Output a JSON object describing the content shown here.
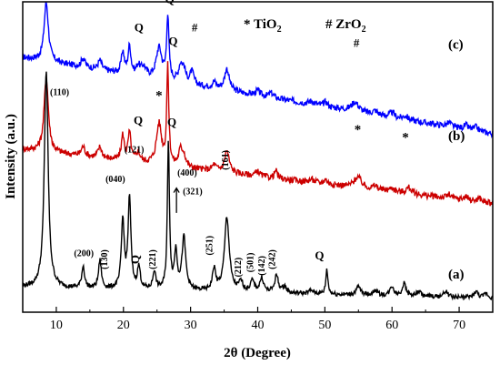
{
  "chart_data": {
    "type": "line",
    "xlabel": "2θ (Degree)",
    "ylabel": "Intensity (a.u.)",
    "xlim": [
      5,
      75
    ],
    "x_ticks": [
      10,
      20,
      30,
      40,
      50,
      60,
      70
    ],
    "y_ticks_shown": false,
    "grid": false,
    "legend": {
      "placement": "top-right",
      "items": [
        {
          "symbol": "*",
          "phase": "TiO",
          "subscript": "2"
        },
        {
          "symbol": "#",
          "phase": "ZrO",
          "subscript": "2"
        }
      ]
    },
    "series": [
      {
        "name": "(c)",
        "color": "#0000ff",
        "baseline": 0.82,
        "noise": 0.01,
        "slope": -0.00035,
        "peaks": [
          [
            8.5,
            0.19,
            0.45
          ],
          [
            14.0,
            0.03,
            0.4
          ],
          [
            16.5,
            0.03,
            0.4
          ],
          [
            19.9,
            0.07,
            0.3
          ],
          [
            20.9,
            0.09,
            0.3
          ],
          [
            22.2,
            0.03,
            0.4
          ],
          [
            23.0,
            0.03,
            0.5
          ],
          [
            25.3,
            0.1,
            0.6
          ],
          [
            26.6,
            0.2,
            0.25
          ],
          [
            28.5,
            0.05,
            0.4
          ],
          [
            29.0,
            0.04,
            0.4
          ],
          [
            30.2,
            0.04,
            0.4
          ],
          [
            33.5,
            0.02,
            0.4
          ],
          [
            35.4,
            0.07,
            0.5
          ],
          [
            40.0,
            0.015,
            0.5
          ],
          [
            42.0,
            0.015,
            0.5
          ],
          [
            48.0,
            0.01,
            0.6
          ],
          [
            50.1,
            0.015,
            0.4
          ],
          [
            54.5,
            0.03,
            0.8
          ],
          [
            57.5,
            0.012,
            0.5
          ],
          [
            60.0,
            0.015,
            0.5
          ],
          [
            62.0,
            0.012,
            0.5
          ],
          [
            68.5,
            0.012,
            0.5
          ],
          [
            71.0,
            0.012,
            0.5
          ],
          [
            72.5,
            0.012,
            0.5
          ]
        ],
        "annotations": [
          {
            "text": "Q",
            "x": 26.9,
            "y": 0.995
          },
          {
            "text": "Q",
            "x": 22.3,
            "y": 0.905
          },
          {
            "text": "#",
            "x": 30.6,
            "y": 0.905
          },
          {
            "text": "#",
            "x": 54.7,
            "y": 0.855
          }
        ],
        "label": "(c)"
      },
      {
        "name": "(b)",
        "color": "#cc0000",
        "baseline": 0.525,
        "noise": 0.01,
        "slope": -0.00025,
        "peaks": [
          [
            8.5,
            0.24,
            0.45
          ],
          [
            14.0,
            0.03,
            0.4
          ],
          [
            16.5,
            0.035,
            0.4
          ],
          [
            19.9,
            0.08,
            0.3
          ],
          [
            20.9,
            0.09,
            0.3
          ],
          [
            22.2,
            0.03,
            0.4
          ],
          [
            25.3,
            0.13,
            0.55
          ],
          [
            26.6,
            0.31,
            0.22
          ],
          [
            28.5,
            0.05,
            0.4
          ],
          [
            29.0,
            0.035,
            0.4
          ],
          [
            33.5,
            0.02,
            0.4
          ],
          [
            35.4,
            0.07,
            0.5
          ],
          [
            40.0,
            0.015,
            0.5
          ],
          [
            42.7,
            0.025,
            0.3
          ],
          [
            48.0,
            0.01,
            0.6
          ],
          [
            50.1,
            0.015,
            0.4
          ],
          [
            54.9,
            0.035,
            0.8
          ],
          [
            57.5,
            0.012,
            0.5
          ],
          [
            60.0,
            0.012,
            0.5
          ],
          [
            62.5,
            0.02,
            0.6
          ],
          [
            68.5,
            0.012,
            0.5
          ],
          [
            71.0,
            0.012,
            0.5
          ],
          [
            73.0,
            0.012,
            0.5
          ]
        ],
        "annotations": [
          {
            "text": "*",
            "x": 25.3,
            "y": 0.685
          },
          {
            "text": "Q",
            "x": 22.2,
            "y": 0.605
          },
          {
            "text": "Q",
            "x": 27.4,
            "y": 0.86
          },
          {
            "text": "*",
            "x": 54.9,
            "y": 0.575
          },
          {
            "text": "*",
            "x": 62.0,
            "y": 0.55
          }
        ],
        "label": "(b)"
      },
      {
        "name": "(a)",
        "color": "#000000",
        "baseline": 0.08,
        "noise": 0.007,
        "slope": -5e-05,
        "peaks": [
          [
            8.5,
            0.7,
            0.4
          ],
          [
            14.0,
            0.07,
            0.3
          ],
          [
            16.5,
            0.09,
            0.3
          ],
          [
            19.9,
            0.22,
            0.3
          ],
          [
            20.9,
            0.29,
            0.3
          ],
          [
            22.3,
            0.07,
            0.3
          ],
          [
            24.6,
            0.06,
            0.3
          ],
          [
            26.7,
            0.47,
            0.22
          ],
          [
            27.8,
            0.12,
            0.3
          ],
          [
            29.0,
            0.17,
            0.4
          ],
          [
            33.5,
            0.07,
            0.35
          ],
          [
            35.4,
            0.24,
            0.5
          ],
          [
            37.5,
            0.03,
            0.4
          ],
          [
            39.2,
            0.035,
            0.4
          ],
          [
            40.6,
            0.045,
            0.4
          ],
          [
            42.8,
            0.055,
            0.4
          ],
          [
            44.0,
            0.02,
            0.4
          ],
          [
            48.0,
            0.01,
            0.6
          ],
          [
            50.3,
            0.08,
            0.22
          ],
          [
            55.0,
            0.025,
            0.5
          ],
          [
            57.5,
            0.015,
            0.5
          ],
          [
            60.0,
            0.03,
            0.4
          ],
          [
            61.8,
            0.04,
            0.4
          ],
          [
            64.0,
            0.015,
            0.5
          ],
          [
            68.0,
            0.02,
            0.4
          ],
          [
            72.5,
            0.02,
            0.4
          ],
          [
            74.0,
            0.015,
            0.4
          ]
        ],
        "annotations": [
          {
            "text": "(110)",
            "x": 10.5,
            "y": 0.7
          },
          {
            "text": "(040)",
            "x": 18.8,
            "y": 0.42
          },
          {
            "text": "(121)",
            "x": 21.6,
            "y": 0.515
          },
          {
            "text": "(200)",
            "x": 14.1,
            "y": 0.18
          },
          {
            "text": "(130)",
            "x": 17.6,
            "y": 0.17,
            "rotate": true
          },
          {
            "text": "Q",
            "x": 22.3,
            "y": 0.17,
            "rotate": true
          },
          {
            "text": "(221)",
            "x": 24.8,
            "y": 0.17,
            "rotate": true
          },
          {
            "text": "Q",
            "x": 27.2,
            "y": 0.6
          },
          {
            "text": "(400)",
            "x": 29.5,
            "y": 0.44
          },
          {
            "text": "(321)",
            "x": 30.3,
            "y": 0.38
          },
          {
            "text": "(161)",
            "x": 35.6,
            "y": 0.49,
            "rotate": true
          },
          {
            "text": "(251)",
            "x": 33.2,
            "y": 0.215,
            "rotate": true
          },
          {
            "text": "(212)",
            "x": 37.5,
            "y": 0.145,
            "rotate": true
          },
          {
            "text": "(501)",
            "x": 39.3,
            "y": 0.16,
            "rotate": true
          },
          {
            "text": "(142)",
            "x": 41.0,
            "y": 0.15,
            "rotate": true
          },
          {
            "text": "(242)",
            "x": 42.6,
            "y": 0.17,
            "rotate": true
          },
          {
            "text": "Q",
            "x": 49.2,
            "y": 0.17
          }
        ],
        "label": "(a)"
      }
    ]
  }
}
